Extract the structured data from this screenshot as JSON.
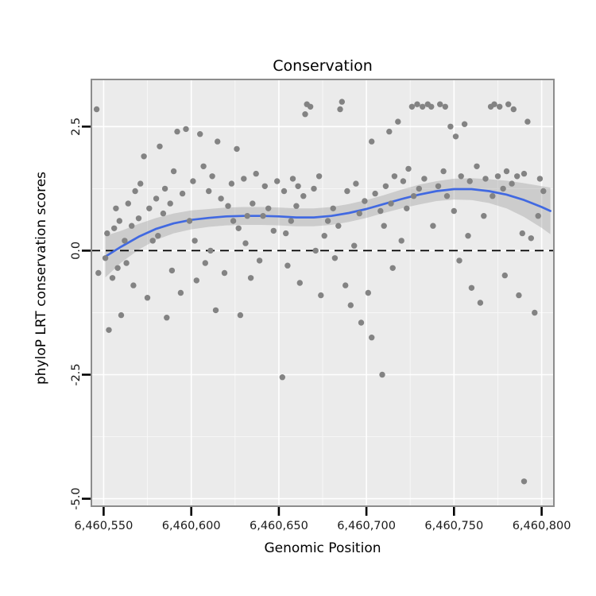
{
  "figure": {
    "title": "Conservation",
    "xlabel": "Genomic Position",
    "ylabel": "phyloP LRT conservation scores"
  },
  "chart_data": {
    "type": "scatter",
    "title": "Conservation",
    "xlabel": "Genomic Position",
    "ylabel": "phyloP LRT conservation scores",
    "x_domain": [
      6460543,
      6460807
    ],
    "y_domain": [
      -5.15,
      3.45
    ],
    "x_ticks": {
      "values": [
        6460550,
        6460600,
        6460650,
        6460700,
        6460750,
        6460800
      ],
      "labels": [
        "6,460,550",
        "6,460,600",
        "6,460,650",
        "6,460,700",
        "6,460,750",
        "6,460,800"
      ]
    },
    "y_ticks": {
      "values": [
        -5.0,
        -2.5,
        0.0,
        2.5
      ],
      "labels": [
        "-5.0",
        "-2.5",
        "0.0",
        "2.5"
      ]
    },
    "x_minor": [
      6460575,
      6460625,
      6460675,
      6460725,
      6460775
    ],
    "y_minor": [
      -3.75,
      -1.25,
      1.25
    ],
    "hline": 0,
    "grid": true,
    "legend": null,
    "colors": {
      "point": "#838383",
      "smooth": "#4169e1",
      "band": "#9c9c9c",
      "panel": "#ebebeb",
      "grid_major": "#ffffff",
      "grid_minor": "#ffffff",
      "hline": "#000000",
      "border": "#8c8c8c",
      "tick": "#000000",
      "tick_label": "#1a1a1a"
    },
    "points": [
      [
        6460546,
        2.85
      ],
      [
        6460547,
        -0.45
      ],
      [
        6460551,
        -0.15
      ],
      [
        6460552,
        0.35
      ],
      [
        6460553,
        -1.6
      ],
      [
        6460555,
        -0.55
      ],
      [
        6460556,
        0.45
      ],
      [
        6460557,
        0.85
      ],
      [
        6460558,
        -0.35
      ],
      [
        6460559,
        0.6
      ],
      [
        6460560,
        -1.3
      ],
      [
        6460562,
        0.2
      ],
      [
        6460563,
        -0.25
      ],
      [
        6460564,
        0.95
      ],
      [
        6460566,
        0.5
      ],
      [
        6460567,
        -0.7
      ],
      [
        6460568,
        1.2
      ],
      [
        6460570,
        0.65
      ],
      [
        6460571,
        1.35
      ],
      [
        6460573,
        1.9
      ],
      [
        6460575,
        -0.95
      ],
      [
        6460576,
        0.85
      ],
      [
        6460578,
        0.2
      ],
      [
        6460580,
        1.05
      ],
      [
        6460581,
        0.3
      ],
      [
        6460582,
        2.1
      ],
      [
        6460584,
        0.75
      ],
      [
        6460585,
        1.25
      ],
      [
        6460586,
        -1.35
      ],
      [
        6460588,
        0.95
      ],
      [
        6460589,
        -0.4
      ],
      [
        6460590,
        1.6
      ],
      [
        6460592,
        2.4
      ],
      [
        6460594,
        -0.85
      ],
      [
        6460595,
        1.15
      ],
      [
        6460597,
        2.45
      ],
      [
        6460599,
        0.6
      ],
      [
        6460601,
        1.4
      ],
      [
        6460602,
        0.2
      ],
      [
        6460603,
        -0.6
      ],
      [
        6460605,
        2.35
      ],
      [
        6460607,
        1.7
      ],
      [
        6460608,
        -0.25
      ],
      [
        6460610,
        1.2
      ],
      [
        6460611,
        0.0
      ],
      [
        6460612,
        1.5
      ],
      [
        6460614,
        -1.2
      ],
      [
        6460615,
        2.2
      ],
      [
        6460617,
        1.05
      ],
      [
        6460619,
        -0.45
      ],
      [
        6460621,
        0.9
      ],
      [
        6460623,
        1.35
      ],
      [
        6460624,
        0.6
      ],
      [
        6460626,
        2.05
      ],
      [
        6460627,
        0.45
      ],
      [
        6460628,
        -1.3
      ],
      [
        6460630,
        1.45
      ],
      [
        6460631,
        0.15
      ],
      [
        6460632,
        0.7
      ],
      [
        6460634,
        -0.55
      ],
      [
        6460635,
        0.95
      ],
      [
        6460637,
        1.55
      ],
      [
        6460639,
        -0.2
      ],
      [
        6460641,
        0.7
      ],
      [
        6460642,
        1.3
      ],
      [
        6460644,
        0.85
      ],
      [
        6460647,
        0.4
      ],
      [
        6460649,
        1.4
      ],
      [
        6460652,
        -2.55
      ],
      [
        6460653,
        1.2
      ],
      [
        6460654,
        0.35
      ],
      [
        6460655,
        -0.3
      ],
      [
        6460657,
        0.6
      ],
      [
        6460658,
        1.45
      ],
      [
        6460660,
        0.9
      ],
      [
        6460661,
        1.3
      ],
      [
        6460662,
        -0.65
      ],
      [
        6460664,
        1.1
      ],
      [
        6460665,
        2.75
      ],
      [
        6460666,
        2.95
      ],
      [
        6460668,
        2.9
      ],
      [
        6460670,
        1.25
      ],
      [
        6460671,
        0.0
      ],
      [
        6460673,
        1.5
      ],
      [
        6460674,
        -0.9
      ],
      [
        6460676,
        0.3
      ],
      [
        6460678,
        0.6
      ],
      [
        6460681,
        0.85
      ],
      [
        6460682,
        -0.15
      ],
      [
        6460684,
        0.5
      ],
      [
        6460685,
        2.85
      ],
      [
        6460686,
        3.0
      ],
      [
        6460688,
        -0.7
      ],
      [
        6460689,
        1.2
      ],
      [
        6460691,
        -1.1
      ],
      [
        6460693,
        0.1
      ],
      [
        6460694,
        1.35
      ],
      [
        6460696,
        0.75
      ],
      [
        6460697,
        -1.45
      ],
      [
        6460699,
        1.0
      ],
      [
        6460701,
        -0.85
      ],
      [
        6460703,
        2.2
      ],
      [
        6460703,
        -1.75
      ],
      [
        6460705,
        1.15
      ],
      [
        6460708,
        0.8
      ],
      [
        6460709,
        -2.5
      ],
      [
        6460710,
        0.5
      ],
      [
        6460711,
        1.3
      ],
      [
        6460713,
        2.4
      ],
      [
        6460714,
        0.95
      ],
      [
        6460715,
        -0.35
      ],
      [
        6460716,
        1.5
      ],
      [
        6460718,
        2.6
      ],
      [
        6460720,
        0.2
      ],
      [
        6460721,
        1.4
      ],
      [
        6460723,
        0.85
      ],
      [
        6460724,
        1.65
      ],
      [
        6460726,
        2.9
      ],
      [
        6460727,
        1.1
      ],
      [
        6460729,
        2.95
      ],
      [
        6460730,
        1.25
      ],
      [
        6460732,
        2.9
      ],
      [
        6460733,
        1.45
      ],
      [
        6460735,
        2.95
      ],
      [
        6460737,
        2.9
      ],
      [
        6460738,
        0.5
      ],
      [
        6460741,
        1.3
      ],
      [
        6460742,
        2.95
      ],
      [
        6460744,
        1.6
      ],
      [
        6460745,
        2.9
      ],
      [
        6460746,
        1.1
      ],
      [
        6460748,
        2.5
      ],
      [
        6460750,
        0.8
      ],
      [
        6460751,
        2.3
      ],
      [
        6460753,
        -0.2
      ],
      [
        6460754,
        1.5
      ],
      [
        6460756,
        2.55
      ],
      [
        6460758,
        0.3
      ],
      [
        6460759,
        1.4
      ],
      [
        6460760,
        -0.75
      ],
      [
        6460763,
        1.7
      ],
      [
        6460765,
        -1.05
      ],
      [
        6460767,
        0.7
      ],
      [
        6460768,
        1.45
      ],
      [
        6460771,
        2.9
      ],
      [
        6460772,
        1.1
      ],
      [
        6460773,
        2.95
      ],
      [
        6460775,
        1.5
      ],
      [
        6460776,
        2.9
      ],
      [
        6460778,
        1.25
      ],
      [
        6460779,
        -0.5
      ],
      [
        6460780,
        1.6
      ],
      [
        6460781,
        2.95
      ],
      [
        6460783,
        1.35
      ],
      [
        6460784,
        2.85
      ],
      [
        6460786,
        1.5
      ],
      [
        6460787,
        -0.9
      ],
      [
        6460789,
        0.35
      ],
      [
        6460790,
        1.55
      ],
      [
        6460790,
        -4.65
      ],
      [
        6460792,
        2.6
      ],
      [
        6460794,
        0.25
      ],
      [
        6460796,
        -1.25
      ],
      [
        6460798,
        0.7
      ],
      [
        6460799,
        1.45
      ],
      [
        6460801,
        1.2
      ]
    ],
    "smooth": {
      "x": [
        6460551,
        6460560,
        6460570,
        6460580,
        6460590,
        6460600,
        6460610,
        6460620,
        6460630,
        6460640,
        6460650,
        6460660,
        6460670,
        6460680,
        6460690,
        6460700,
        6460710,
        6460720,
        6460730,
        6460740,
        6460750,
        6460760,
        6460770,
        6460780,
        6460790,
        6460800,
        6460805
      ],
      "y": [
        -0.12,
        0.08,
        0.28,
        0.44,
        0.55,
        0.62,
        0.66,
        0.69,
        0.7,
        0.7,
        0.69,
        0.67,
        0.67,
        0.7,
        0.76,
        0.84,
        0.94,
        1.04,
        1.13,
        1.2,
        1.24,
        1.24,
        1.2,
        1.13,
        1.02,
        0.88,
        0.8
      ],
      "se": [
        0.42,
        0.32,
        0.26,
        0.22,
        0.2,
        0.19,
        0.18,
        0.18,
        0.18,
        0.18,
        0.18,
        0.18,
        0.18,
        0.18,
        0.18,
        0.18,
        0.18,
        0.19,
        0.2,
        0.2,
        0.21,
        0.22,
        0.24,
        0.28,
        0.34,
        0.42,
        0.47
      ]
    }
  }
}
